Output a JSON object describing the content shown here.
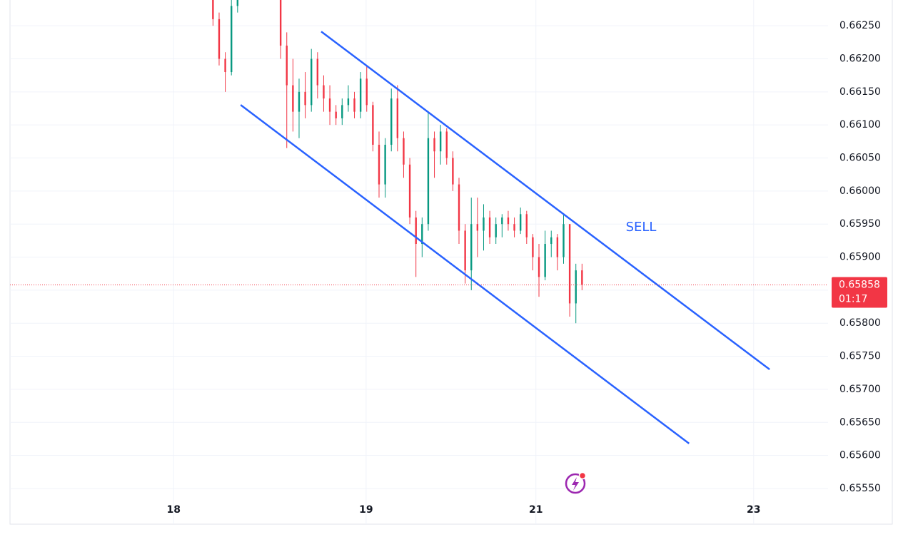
{
  "chart_data": {
    "type": "candlestick",
    "x": [
      33,
      34,
      35,
      36,
      37,
      44,
      45,
      46,
      47,
      48,
      49,
      50,
      51,
      52,
      53,
      54,
      55,
      56,
      57,
      58,
      59,
      60,
      61,
      62,
      63,
      64,
      65,
      66,
      67,
      68,
      69,
      70,
      71,
      72,
      73,
      74,
      75,
      76,
      77,
      78,
      79,
      80,
      81,
      82,
      83,
      84,
      85,
      86,
      87,
      88,
      89,
      90,
      91,
      92,
      93
    ],
    "open": [
      0.6629,
      0.6626,
      0.662,
      0.6618,
      0.6628,
      0.663,
      0.6622,
      0.6616,
      0.6612,
      0.6615,
      0.6613,
      0.662,
      0.6616,
      0.6614,
      0.6612,
      0.6611,
      0.6613,
      0.6614,
      0.6612,
      0.6617,
      0.6613,
      0.6607,
      0.6601,
      0.6607,
      0.6614,
      0.6608,
      0.6604,
      0.6596,
      0.6592,
      0.6595,
      0.6608,
      0.6606,
      0.6609,
      0.6605,
      0.6601,
      0.6594,
      0.6588,
      0.6595,
      0.6594,
      0.6596,
      0.6593,
      0.6595,
      0.6596,
      0.6595,
      0.6594,
      0.65965,
      0.6593,
      0.659,
      0.6587,
      0.6592,
      0.6593,
      0.659,
      0.6595,
      0.6583,
      0.6588
    ],
    "high": [
      0.663,
      0.6627,
      0.6621,
      0.6629,
      0.6632,
      0.663,
      0.6624,
      0.662,
      0.6617,
      0.6618,
      0.66215,
      0.6621,
      0.66175,
      0.6616,
      0.6613,
      0.6614,
      0.6616,
      0.6615,
      0.6618,
      0.6619,
      0.66135,
      0.6609,
      0.6608,
      0.66155,
      0.6616,
      0.6609,
      0.6605,
      0.6597,
      0.6596,
      0.6612,
      0.6609,
      0.661,
      0.66095,
      0.6606,
      0.6602,
      0.6595,
      0.6599,
      0.6599,
      0.6598,
      0.6597,
      0.6596,
      0.65965,
      0.6597,
      0.6596,
      0.65975,
      0.6597,
      0.65935,
      0.6592,
      0.6594,
      0.6594,
      0.65935,
      0.65965,
      0.6595,
      0.6589,
      0.6589
    ],
    "low": [
      0.6625,
      0.6619,
      0.6615,
      0.66175,
      0.6627,
      0.662,
      0.66065,
      0.6609,
      0.6608,
      0.6611,
      0.6612,
      0.6614,
      0.6612,
      0.661,
      0.661,
      0.661,
      0.6612,
      0.6611,
      0.6611,
      0.6612,
      0.6606,
      0.6599,
      0.6599,
      0.6606,
      0.6606,
      0.6602,
      0.6595,
      0.6587,
      0.659,
      0.6594,
      0.6602,
      0.6604,
      0.6604,
      0.66,
      0.6592,
      0.6586,
      0.6585,
      0.659,
      0.6591,
      0.6592,
      0.6592,
      0.6593,
      0.6594,
      0.6593,
      0.65935,
      0.6592,
      0.6588,
      0.6584,
      0.65865,
      0.659,
      0.6588,
      0.6589,
      0.6581,
      0.658,
      0.6585
    ],
    "close": [
      0.6626,
      0.662,
      0.6618,
      0.6628,
      0.6631,
      0.6622,
      0.6616,
      0.6612,
      0.6615,
      0.6613,
      0.662,
      0.6616,
      0.6614,
      0.6612,
      0.6611,
      0.6613,
      0.6614,
      0.6612,
      0.6617,
      0.6613,
      0.6607,
      0.6601,
      0.6607,
      0.6614,
      0.6608,
      0.6604,
      0.6596,
      0.6592,
      0.6595,
      0.6608,
      0.6606,
      0.6609,
      0.6605,
      0.6601,
      0.6594,
      0.6588,
      0.6595,
      0.6594,
      0.6596,
      0.6593,
      0.6595,
      0.6596,
      0.6595,
      0.6594,
      0.65965,
      0.6593,
      0.659,
      0.6587,
      0.6592,
      0.6593,
      0.659,
      0.6595,
      0.6583,
      0.6588,
      0.65858
    ],
    "up_color": "#089981",
    "down_color": "#f23645",
    "xlim": [
      0,
      133
    ],
    "ylim": [
      0.65496,
      0.66289
    ],
    "xticks": [
      {
        "value": 26.6,
        "label": "18"
      },
      {
        "value": 57.9,
        "label": "19"
      },
      {
        "value": 85.5,
        "label": "21"
      },
      {
        "value": 120.9,
        "label": "23"
      }
    ],
    "yticks": [
      {
        "value": 0.6555,
        "label": "0.65550"
      },
      {
        "value": 0.656,
        "label": "0.65600"
      },
      {
        "value": 0.6565,
        "label": "0.65650"
      },
      {
        "value": 0.657,
        "label": "0.65700"
      },
      {
        "value": 0.6575,
        "label": "0.65750"
      },
      {
        "value": 0.658,
        "label": "0.65800"
      },
      {
        "value": 0.6585,
        "label": "0.65850"
      },
      {
        "value": 0.659,
        "label": "0.65900"
      },
      {
        "value": 0.6595,
        "label": "0.65950"
      },
      {
        "value": 0.66,
        "label": "0.66000"
      },
      {
        "value": 0.6605,
        "label": "0.66050"
      },
      {
        "value": 0.661,
        "label": "0.66100"
      },
      {
        "value": 0.6615,
        "label": "0.66150"
      },
      {
        "value": 0.662,
        "label": "0.66200"
      },
      {
        "value": 0.6625,
        "label": "0.66250"
      }
    ],
    "grid": true,
    "last_price": {
      "value": 0.65858,
      "label": "0.65858",
      "countdown": "01:17",
      "color": "#f23645"
    },
    "trend_lines": {
      "color": "#2962ff",
      "lines": [
        {
          "x": [
            50.6,
            123.5
          ],
          "y": [
            0.662413,
            0.657301
          ]
        },
        {
          "x": [
            37.5,
            110.4
          ],
          "y": [
            0.661303,
            0.65618
          ]
        }
      ]
    },
    "annotation": "SELL"
  }
}
